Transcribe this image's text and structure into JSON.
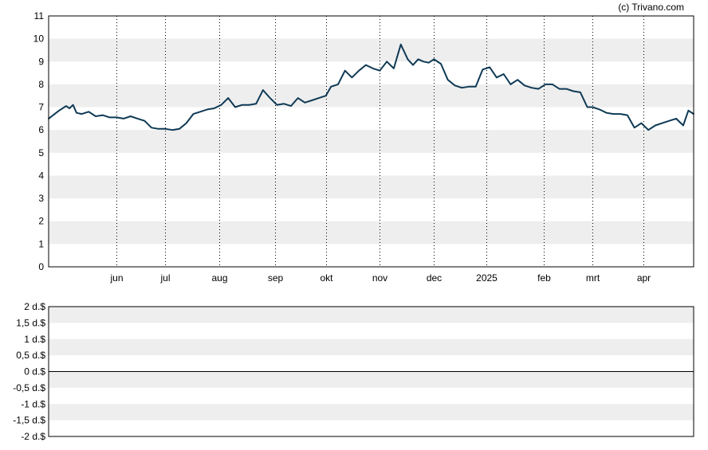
{
  "credit": "(c) Trivano.com",
  "colors": {
    "line": "#0f3a55",
    "band": "#eeeeee",
    "frame": "#000000",
    "grid": "#000000"
  },
  "chart_data": [
    {
      "type": "line",
      "title": "",
      "ylim": [
        0,
        11
      ],
      "yticks": [
        "0",
        "1",
        "2",
        "3",
        "4",
        "5",
        "6",
        "7",
        "8",
        "9",
        "10",
        "11"
      ],
      "xlim": [
        "2024-04-25",
        "2025-04-30"
      ],
      "xticks": [
        {
          "label": "jun",
          "date": "2024-06-03"
        },
        {
          "label": "jul",
          "date": "2024-07-01"
        },
        {
          "label": "aug",
          "date": "2024-08-01"
        },
        {
          "label": "sep",
          "date": "2024-09-02"
        },
        {
          "label": "okt",
          "date": "2024-10-01"
        },
        {
          "label": "nov",
          "date": "2024-11-01"
        },
        {
          "label": "dec",
          "date": "2024-12-02"
        },
        {
          "label": "2025",
          "date": "2025-01-01"
        },
        {
          "label": "feb",
          "date": "2025-02-03"
        },
        {
          "label": "mrt",
          "date": "2025-03-03"
        },
        {
          "label": "apr",
          "date": "2025-04-01"
        }
      ],
      "grid": "alternating horizontal bands, dotted vertical month lines",
      "series": [
        {
          "x": [
            "2024-04-25",
            "2024-05-01",
            "2024-05-05",
            "2024-05-07",
            "2024-05-09",
            "2024-05-11",
            "2024-05-14",
            "2024-05-18",
            "2024-05-22",
            "2024-05-26",
            "2024-05-30",
            "2024-06-03",
            "2024-06-07",
            "2024-06-11",
            "2024-06-15",
            "2024-06-19",
            "2024-06-23",
            "2024-06-27",
            "2024-07-01",
            "2024-07-05",
            "2024-07-09",
            "2024-07-13",
            "2024-07-17",
            "2024-07-21",
            "2024-07-25",
            "2024-07-29",
            "2024-08-02",
            "2024-08-06",
            "2024-08-10",
            "2024-08-14",
            "2024-08-18",
            "2024-08-22",
            "2024-08-26",
            "2024-08-30",
            "2024-09-03",
            "2024-09-07",
            "2024-09-11",
            "2024-09-15",
            "2024-09-19",
            "2024-09-23",
            "2024-09-27",
            "2024-10-01",
            "2024-10-04",
            "2024-10-08",
            "2024-10-12",
            "2024-10-16",
            "2024-10-20",
            "2024-10-24",
            "2024-10-28",
            "2024-11-01",
            "2024-11-05",
            "2024-11-09",
            "2024-11-13",
            "2024-11-17",
            "2024-11-20",
            "2024-11-23",
            "2024-11-26",
            "2024-11-29",
            "2024-12-02",
            "2024-12-06",
            "2024-12-10",
            "2024-12-14",
            "2024-12-18",
            "2024-12-22",
            "2024-12-26",
            "2024-12-30",
            "2025-01-03",
            "2025-01-07",
            "2025-01-11",
            "2025-01-15",
            "2025-01-19",
            "2025-01-23",
            "2025-01-27",
            "2025-01-31",
            "2025-02-04",
            "2025-02-08",
            "2025-02-12",
            "2025-02-16",
            "2025-02-20",
            "2025-02-24",
            "2025-02-28",
            "2025-03-03",
            "2025-03-07",
            "2025-03-11",
            "2025-03-15",
            "2025-03-19",
            "2025-03-23",
            "2025-03-27",
            "2025-03-31",
            "2025-04-04",
            "2025-04-08",
            "2025-04-12",
            "2025-04-16",
            "2025-04-20",
            "2025-04-24",
            "2025-04-27",
            "2025-04-30"
          ],
          "y": [
            6.5,
            6.85,
            7.05,
            6.95,
            7.1,
            6.75,
            6.7,
            6.8,
            6.6,
            6.65,
            6.55,
            6.55,
            6.5,
            6.6,
            6.5,
            6.4,
            6.1,
            6.05,
            6.05,
            6.0,
            6.05,
            6.3,
            6.7,
            6.8,
            6.9,
            6.95,
            7.1,
            7.4,
            7.0,
            7.1,
            7.1,
            7.15,
            7.75,
            7.4,
            7.1,
            7.15,
            7.05,
            7.4,
            7.2,
            7.3,
            7.4,
            7.5,
            7.9,
            8.0,
            8.6,
            8.3,
            8.6,
            8.85,
            8.7,
            8.6,
            9.0,
            8.7,
            9.75,
            9.1,
            8.85,
            9.1,
            9.0,
            8.95,
            9.1,
            8.9,
            8.2,
            7.95,
            7.85,
            7.9,
            7.9,
            8.65,
            8.75,
            8.3,
            8.45,
            8.0,
            8.2,
            7.95,
            7.85,
            7.8,
            8.0,
            8.0,
            7.8,
            7.8,
            7.7,
            7.65,
            7.0,
            7.0,
            6.9,
            6.75,
            6.7,
            6.7,
            6.65,
            6.1,
            6.3,
            6.0,
            6.2,
            6.3,
            6.4,
            6.5,
            6.2,
            6.85,
            6.7
          ]
        }
      ]
    },
    {
      "type": "line",
      "title": "",
      "ylim": [
        -2,
        2
      ],
      "yticks": [
        "2 d.$",
        "1,5 d.$",
        "1 d.$",
        "0,5 d.$",
        "0 d.$",
        "-0,5 d.$",
        "-1 d.$",
        "-1,5 d.$",
        "-2 d.$"
      ],
      "series": []
    }
  ]
}
